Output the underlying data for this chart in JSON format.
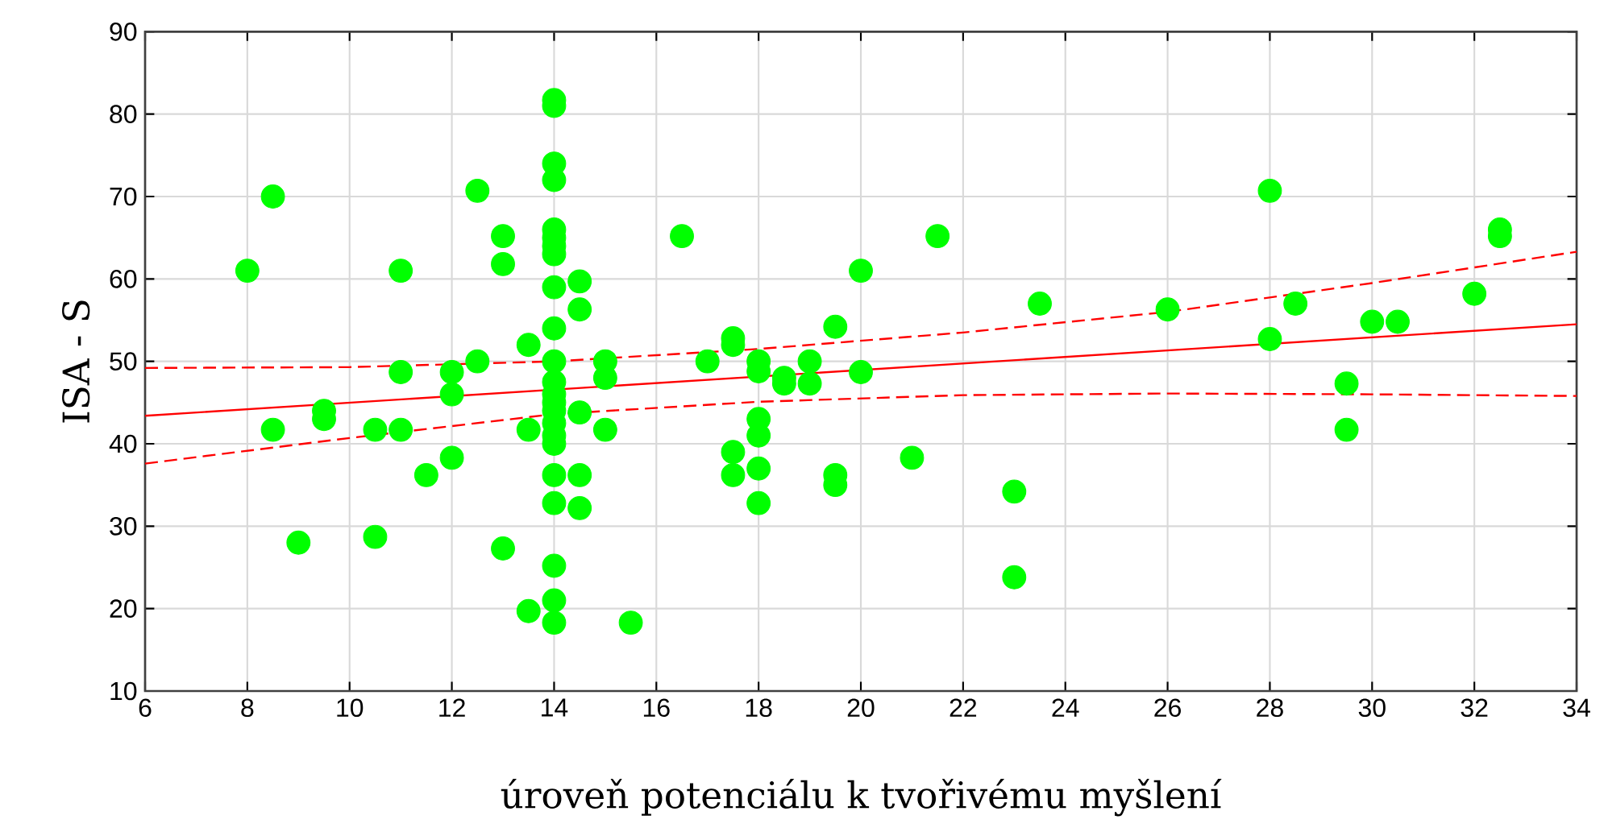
{
  "chart_data": {
    "type": "scatter",
    "xlabel": "úroveň potenciálu k tvořivému myšlení",
    "ylabel": "ISA - S",
    "xlim": [
      6,
      34
    ],
    "xticks": [
      6,
      8,
      10,
      12,
      14,
      16,
      18,
      20,
      22,
      24,
      26,
      28,
      30,
      32,
      34
    ],
    "ylim": [
      10,
      90
    ],
    "yticks": [
      10,
      20,
      30,
      40,
      50,
      60,
      70,
      80,
      90
    ],
    "grid": true,
    "series": [
      {
        "color": "#00ff00",
        "marker": "circle",
        "x": [
          8,
          8.5,
          8.5,
          9,
          9.5,
          9.5,
          10.5,
          10.5,
          11,
          11,
          11,
          11.5,
          12,
          12,
          12,
          12.5,
          12.5,
          13,
          13,
          13,
          13.5,
          13.5,
          13.5,
          14,
          14,
          14,
          14,
          14,
          14,
          14,
          14,
          14,
          14,
          14,
          14,
          14,
          14,
          14,
          14,
          14,
          14,
          14,
          14,
          14,
          14,
          14,
          14.5,
          14.5,
          14.5,
          14.5,
          14.5,
          15,
          15,
          15,
          15.5,
          16.5,
          17,
          17.5,
          17.5,
          17.5,
          17.5,
          18,
          18,
          18,
          18,
          18,
          18,
          18.5,
          18.5,
          19,
          19,
          19.5,
          19.5,
          19.5,
          20,
          20,
          21,
          21.5,
          23,
          23,
          23.5,
          26,
          28,
          28,
          28.5,
          29.5,
          29.5,
          30,
          30.5,
          32,
          32.5,
          32.5
        ],
        "values": [
          61,
          70,
          41.7,
          28,
          44,
          43,
          41.7,
          28.7,
          61,
          48.7,
          41.7,
          36.2,
          48.7,
          46,
          38.3,
          70.7,
          50,
          65.2,
          61.8,
          27.3,
          52,
          41.7,
          19.7,
          81.7,
          81,
          74,
          72,
          66,
          65,
          64,
          63,
          59,
          54,
          50,
          47.5,
          46,
          45,
          44,
          42.5,
          41,
          40,
          36.2,
          32.8,
          25.2,
          21,
          18.3,
          59.7,
          56.3,
          43.8,
          36.2,
          32.2,
          50,
          48,
          41.7,
          18.3,
          65.2,
          50,
          52.8,
          52,
          39,
          36.2,
          50,
          48.8,
          43,
          41,
          37,
          32.8,
          48,
          47.3,
          50,
          47.3,
          54.2,
          36.2,
          35,
          61,
          48.7,
          38.3,
          65.2,
          34.2,
          23.8,
          57,
          56.3,
          70.7,
          52.7,
          57,
          47.3,
          41.7,
          54.8,
          54.8,
          58.2,
          66,
          65.2
        ]
      },
      {
        "type": "line",
        "color": "#ff0000",
        "marker": "none",
        "line_style": "solid",
        "x": [
          6,
          34
        ],
        "values": [
          43.4,
          54.5
        ]
      },
      {
        "type": "line",
        "color": "#ff0000",
        "marker": "none",
        "line_style": "dashed",
        "x": [
          6,
          10,
          14,
          18,
          22,
          26,
          30,
          34
        ],
        "values": [
          49.2,
          49.3,
          50,
          51.5,
          53.5,
          56,
          59.5,
          63.3
        ]
      },
      {
        "type": "line",
        "color": "#ff0000",
        "marker": "none",
        "line_style": "dashed",
        "x": [
          6,
          10,
          14,
          18,
          22,
          26,
          30,
          34
        ],
        "values": [
          37.6,
          40.7,
          43.6,
          45.1,
          45.9,
          46.1,
          46,
          45.8
        ]
      }
    ]
  }
}
